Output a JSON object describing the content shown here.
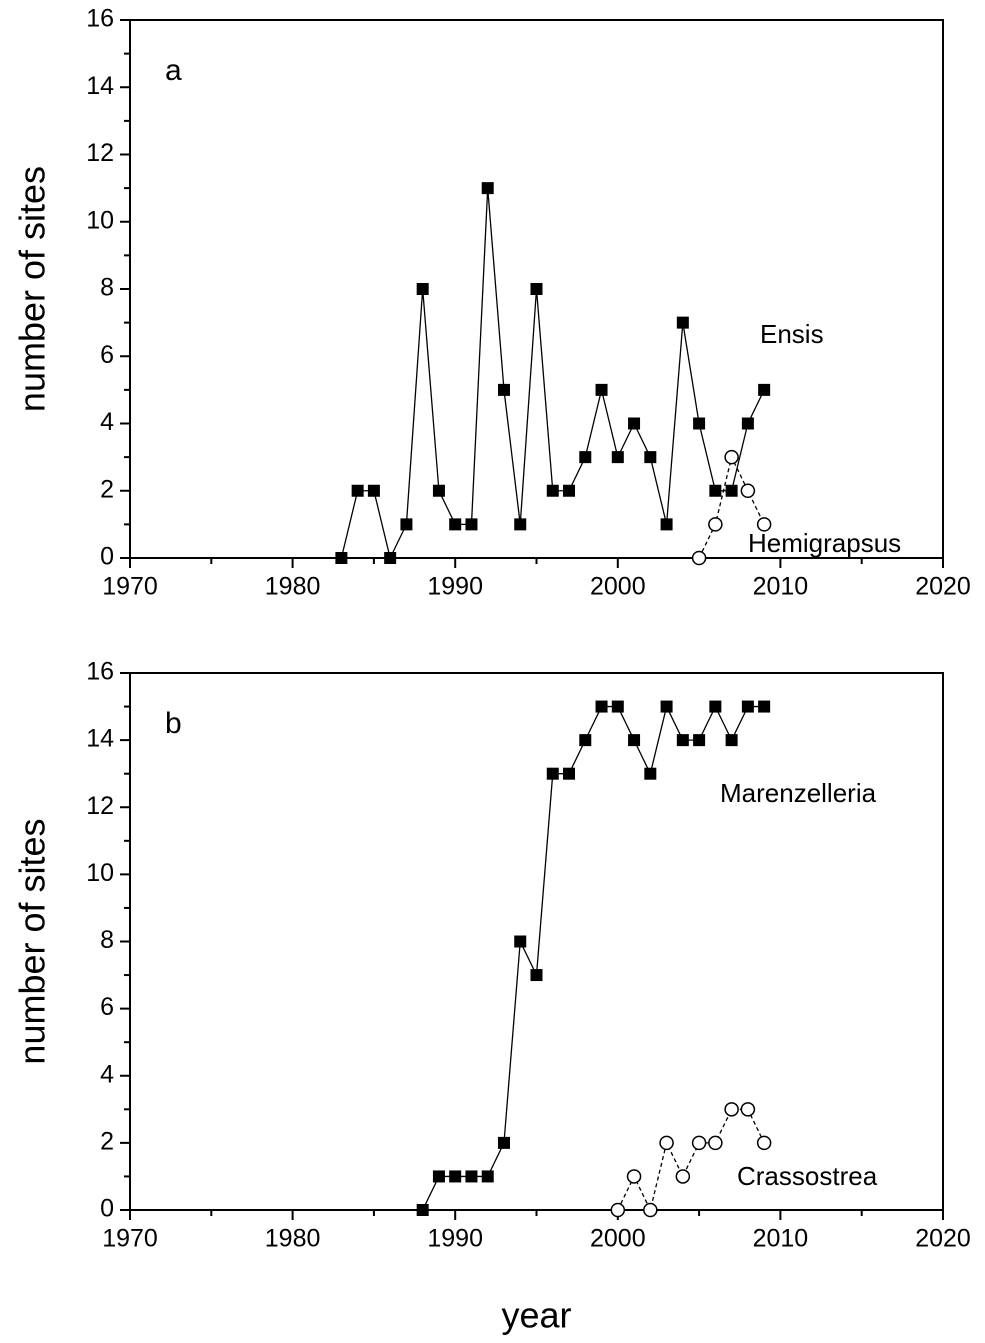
{
  "chart_data": [
    {
      "type": "line",
      "panel_label": "a",
      "ylabel": "number of sites",
      "xlim": [
        1970,
        2020
      ],
      "xticks": [
        1970,
        1980,
        1990,
        2000,
        2010,
        2020
      ],
      "xminorticks": [
        1975,
        1985,
        1995,
        2005,
        2015
      ],
      "ylim": [
        0,
        16
      ],
      "yticks": [
        0,
        2,
        4,
        6,
        8,
        10,
        12,
        14,
        16
      ],
      "yminorticks": [
        1,
        3,
        5,
        7,
        9,
        11,
        13,
        15
      ],
      "series": [
        {
          "name": "Ensis",
          "color": "#000000",
          "marker": "square",
          "linestyle": "solid",
          "x": [
            1983,
            1984,
            1985,
            1986,
            1987,
            1988,
            1989,
            1990,
            1991,
            1992,
            1993,
            1994,
            1995,
            1996,
            1997,
            1998,
            1999,
            2000,
            2001,
            2002,
            2003,
            2004,
            2005,
            2006,
            2007,
            2008,
            2009
          ],
          "values": [
            0,
            2,
            2,
            0,
            1,
            8,
            2,
            1,
            1,
            11,
            5,
            1,
            8,
            2,
            2,
            3,
            5,
            3,
            4,
            3,
            1,
            7,
            4,
            2,
            2,
            4,
            5
          ]
        },
        {
          "name": "Hemigrapsus",
          "color": "#000000",
          "marker": "circle",
          "linestyle": "dashed",
          "x": [
            2005,
            2006,
            2007,
            2008,
            2009
          ],
          "values": [
            0,
            1,
            3,
            2,
            1
          ]
        }
      ]
    },
    {
      "type": "line",
      "panel_label": "b",
      "ylabel": "number of sites",
      "xlabel": "year",
      "xlim": [
        1970,
        2020
      ],
      "xticks": [
        1970,
        1980,
        1990,
        2000,
        2010,
        2020
      ],
      "xminorticks": [
        1975,
        1985,
        1995,
        2005,
        2015
      ],
      "ylim": [
        0,
        16
      ],
      "yticks": [
        0,
        2,
        4,
        6,
        8,
        10,
        12,
        14,
        16
      ],
      "yminorticks": [
        1,
        3,
        5,
        7,
        9,
        11,
        13,
        15
      ],
      "series": [
        {
          "name": "Marenzelleria",
          "color": "#000000",
          "marker": "square",
          "linestyle": "solid",
          "x": [
            1988,
            1989,
            1990,
            1991,
            1992,
            1993,
            1994,
            1995,
            1996,
            1997,
            1998,
            1999,
            2000,
            2001,
            2002,
            2003,
            2004,
            2005,
            2006,
            2007,
            2008,
            2009
          ],
          "values": [
            0,
            1,
            1,
            1,
            1,
            2,
            8,
            7,
            13,
            13,
            14,
            15,
            15,
            14,
            13,
            15,
            14,
            14,
            15,
            14,
            15,
            15
          ]
        },
        {
          "name": "Crassostrea",
          "color": "#000000",
          "marker": "circle",
          "linestyle": "dashed",
          "x": [
            2000,
            2001,
            2002,
            2003,
            2004,
            2005,
            2006,
            2007,
            2008,
            2009
          ],
          "values": [
            0,
            1,
            0,
            2,
            1,
            2,
            2,
            3,
            3,
            2
          ]
        }
      ]
    }
  ]
}
